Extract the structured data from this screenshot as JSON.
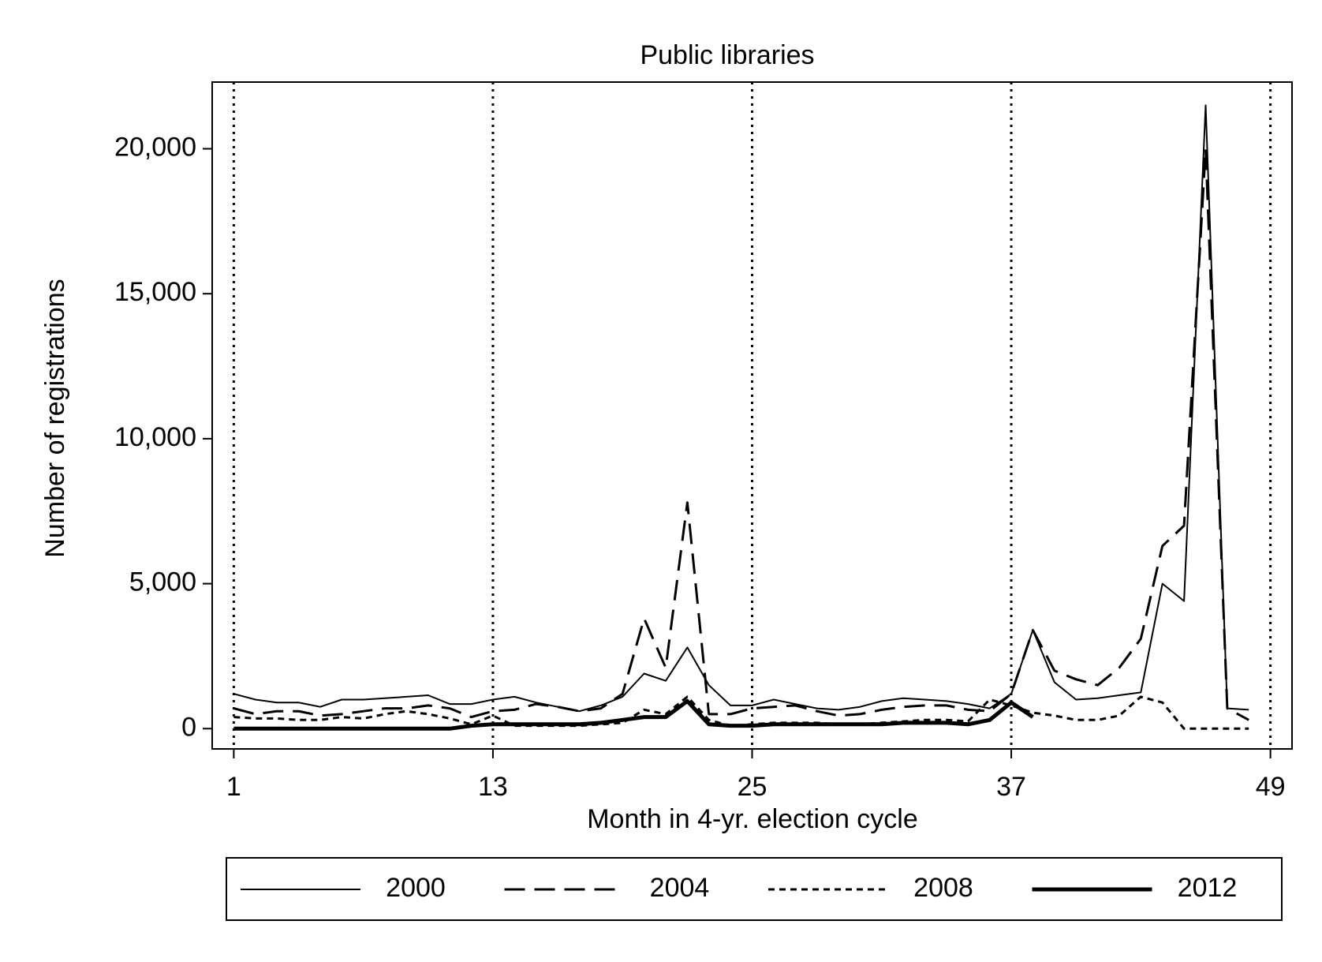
{
  "chart_data": {
    "type": "line",
    "title": "Public libraries",
    "x_label": "Month in 4-yr. election cycle",
    "y_label": "Number of registrations",
    "x": [
      1,
      2,
      3,
      4,
      5,
      6,
      7,
      8,
      9,
      10,
      11,
      12,
      13,
      14,
      15,
      16,
      17,
      18,
      19,
      20,
      21,
      22,
      23,
      24,
      25,
      26,
      27,
      28,
      29,
      30,
      31,
      32,
      33,
      34,
      35,
      36,
      37,
      38,
      39,
      40,
      41,
      42,
      43,
      44,
      45,
      46,
      47,
      48
    ],
    "series": [
      {
        "name": "2000",
        "color": "#000000",
        "dash": "solid",
        "width": 2,
        "values": [
          1200,
          1000,
          900,
          900,
          750,
          1000,
          1000,
          1050,
          1100,
          1150,
          850,
          850,
          1000,
          1100,
          900,
          750,
          600,
          800,
          1100,
          1900,
          1650,
          2800,
          1500,
          800,
          800,
          1000,
          850,
          700,
          650,
          750,
          950,
          1050,
          1000,
          950,
          850,
          700,
          1200,
          3400,
          1600,
          1000,
          1050,
          1150,
          1250,
          5000,
          4400,
          21500,
          700,
          650
        ]
      },
      {
        "name": "2004",
        "color": "#000000",
        "dash": "dashed",
        "width": 3,
        "values": [
          700,
          500,
          600,
          600,
          450,
          500,
          600,
          700,
          700,
          800,
          700,
          400,
          600,
          650,
          850,
          750,
          600,
          700,
          1200,
          3800,
          2100,
          7800,
          500,
          500,
          700,
          750,
          800,
          600,
          450,
          500,
          650,
          750,
          800,
          800,
          650,
          600,
          1200,
          3400,
          2000,
          1700,
          1500,
          2100,
          3100,
          6300,
          7000,
          20000,
          700,
          300
        ]
      },
      {
        "name": "2008",
        "color": "#000000",
        "dash": "dotted",
        "width": 3,
        "values": [
          400,
          350,
          350,
          300,
          300,
          400,
          350,
          500,
          600,
          500,
          350,
          150,
          450,
          100,
          100,
          100,
          100,
          150,
          200,
          650,
          500,
          1100,
          300,
          100,
          150,
          200,
          200,
          200,
          150,
          150,
          200,
          250,
          300,
          300,
          250,
          1000,
          800,
          550,
          450,
          300,
          300,
          450,
          1100,
          900,
          0,
          0,
          0,
          0
        ]
      },
      {
        "name": "2012",
        "color": "#000000",
        "dash": "solid",
        "width": 5,
        "values": [
          0,
          0,
          0,
          0,
          0,
          0,
          0,
          0,
          0,
          0,
          0,
          100,
          150,
          150,
          150,
          150,
          150,
          200,
          300,
          400,
          400,
          950,
          150,
          100,
          100,
          150,
          150,
          150,
          150,
          150,
          150,
          200,
          200,
          200,
          150,
          300,
          900,
          400,
          null,
          null,
          null,
          null,
          null,
          null,
          null,
          null,
          null,
          null
        ]
      }
    ],
    "xlim": [
      0,
      50
    ],
    "xticks": [
      1,
      13,
      25,
      37,
      49
    ],
    "ylim": [
      -700,
      22300
    ],
    "yticks": [
      0,
      {
        "value": 5000,
        "label": "5,000"
      },
      {
        "value": 10000,
        "label": "10,000"
      },
      {
        "value": 15000,
        "label": "15,000"
      },
      {
        "value": 20000,
        "label": "20,000"
      }
    ],
    "vertical_grid": "dotted",
    "legend": "bottom"
  }
}
